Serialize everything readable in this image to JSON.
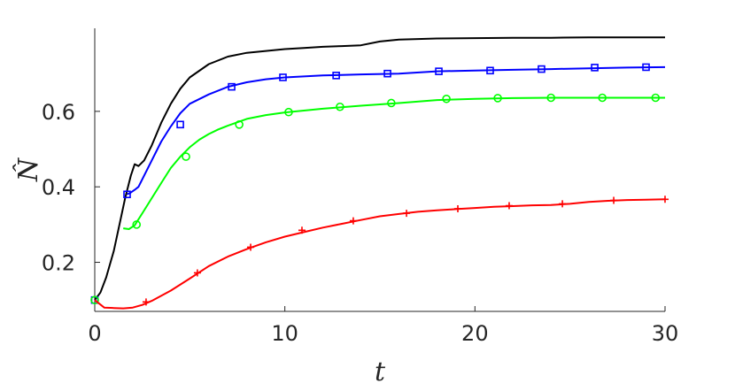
{
  "chart_data": {
    "type": "line",
    "title": "",
    "xlabel": "t",
    "ylabel": "N̂",
    "xlim": [
      0,
      30
    ],
    "ylim": [
      0.07,
      0.82
    ],
    "xticks": [
      0,
      10,
      20,
      30
    ],
    "xtick_labels": [
      "0",
      "10",
      "20",
      "30"
    ],
    "yticks": [
      0.2,
      0.4,
      0.6
    ],
    "ytick_labels": [
      "0.2",
      "0.4",
      "0.6"
    ],
    "grid": false,
    "legend": "none",
    "series": [
      {
        "color": "#000000",
        "marker": "none",
        "x": [
          0,
          0.3,
          0.6,
          1.0,
          1.3,
          1.6,
          1.9,
          2.1,
          2.3,
          2.6,
          3.0,
          3.5,
          4.0,
          4.5,
          5.0,
          6.0,
          7.0,
          8.0,
          9.0,
          10.0,
          11.0,
          12.0,
          13.0,
          14.0,
          15.0,
          16.0,
          18.0,
          20.0,
          22.0,
          24.0,
          26.0,
          28.0,
          30.0
        ],
        "y": [
          0.1,
          0.12,
          0.16,
          0.23,
          0.3,
          0.37,
          0.43,
          0.46,
          0.455,
          0.47,
          0.51,
          0.57,
          0.62,
          0.66,
          0.69,
          0.725,
          0.745,
          0.755,
          0.76,
          0.765,
          0.768,
          0.771,
          0.773,
          0.775,
          0.785,
          0.79,
          0.793,
          0.794,
          0.795,
          0.795,
          0.796,
          0.796,
          0.796
        ]
      },
      {
        "color": "#0000ff",
        "marker": "square",
        "x": [
          1.7,
          1.9,
          2.1,
          2.3,
          2.6,
          3.0,
          3.5,
          4.0,
          4.5,
          5.0,
          6.0,
          7.0,
          8.0,
          9.0,
          10.0,
          12.0,
          14.0,
          16.0,
          18.0,
          20.0,
          22.0,
          24.0,
          26.0,
          28.0,
          30.0
        ],
        "y": [
          0.38,
          0.385,
          0.392,
          0.4,
          0.43,
          0.47,
          0.52,
          0.56,
          0.595,
          0.62,
          0.645,
          0.665,
          0.677,
          0.685,
          0.69,
          0.695,
          0.698,
          0.7,
          0.706,
          0.708,
          0.71,
          0.712,
          0.714,
          0.716,
          0.717
        ],
        "marker_x": [
          0,
          1.7,
          4.5,
          7.2,
          9.9,
          12.7,
          15.4,
          18.1,
          20.8,
          23.5,
          26.3,
          29.0
        ],
        "marker_y": [
          0.1,
          0.38,
          0.565,
          0.665,
          0.69,
          0.695,
          0.7,
          0.706,
          0.708,
          0.712,
          0.716,
          0.717
        ]
      },
      {
        "color": "#00ff00",
        "marker": "circle",
        "x": [
          1.5,
          1.8,
          2.1,
          2.5,
          3.0,
          3.5,
          4.0,
          4.5,
          5.0,
          5.5,
          6.0,
          6.5,
          7.0,
          8.0,
          9.0,
          10.0,
          11.0,
          12.0,
          14.0,
          16.0,
          18.0,
          20.0,
          22.0,
          24.0,
          26.0,
          28.0,
          30.0
        ],
        "y": [
          0.29,
          0.288,
          0.298,
          0.33,
          0.37,
          0.41,
          0.45,
          0.48,
          0.505,
          0.525,
          0.54,
          0.552,
          0.562,
          0.58,
          0.59,
          0.597,
          0.602,
          0.607,
          0.615,
          0.622,
          0.63,
          0.633,
          0.635,
          0.636,
          0.636,
          0.636,
          0.636
        ],
        "marker_x": [
          0,
          2.2,
          4.8,
          7.6,
          10.2,
          12.9,
          15.6,
          18.5,
          21.2,
          24.0,
          26.7,
          29.5
        ],
        "marker_y": [
          0.1,
          0.3,
          0.48,
          0.565,
          0.598,
          0.612,
          0.622,
          0.633,
          0.635,
          0.636,
          0.636,
          0.636
        ]
      },
      {
        "color": "#ff0000",
        "marker": "plus",
        "x": [
          0,
          0.5,
          1.0,
          1.5,
          2.0,
          2.5,
          3.0,
          4.0,
          5.0,
          6.0,
          7.0,
          8.0,
          9.0,
          10.0,
          11.0,
          12.0,
          13.0,
          14.0,
          15.0,
          16.0,
          17.0,
          18.0,
          19.0,
          20.0,
          21.0,
          22.0,
          23.0,
          24.0,
          25.0,
          26.0,
          27.0,
          28.0,
          29.0,
          30.0
        ],
        "y": [
          0.1,
          0.08,
          0.079,
          0.078,
          0.08,
          0.087,
          0.098,
          0.125,
          0.157,
          0.19,
          0.215,
          0.235,
          0.253,
          0.268,
          0.28,
          0.292,
          0.302,
          0.312,
          0.322,
          0.328,
          0.334,
          0.338,
          0.341,
          0.344,
          0.347,
          0.349,
          0.351,
          0.352,
          0.355,
          0.36,
          0.363,
          0.365,
          0.366,
          0.367
        ],
        "marker_x": [
          2.7,
          5.4,
          8.2,
          10.9,
          13.6,
          16.4,
          19.1,
          21.8,
          24.6,
          27.3,
          30.0
        ],
        "marker_y": [
          0.095,
          0.172,
          0.24,
          0.285,
          0.31,
          0.33,
          0.342,
          0.35,
          0.355,
          0.364,
          0.367
        ]
      }
    ]
  }
}
